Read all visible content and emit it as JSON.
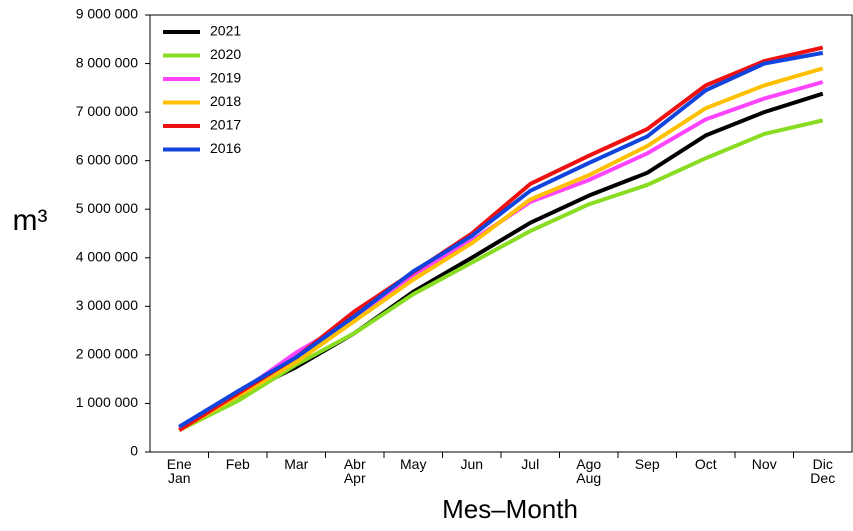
{
  "chart_data": {
    "type": "line",
    "y_label": "m³",
    "x_label": "Mes–Month",
    "categories": [
      [
        "Ene",
        "Jan"
      ],
      [
        "Feb"
      ],
      [
        "Mar"
      ],
      [
        "Abr",
        "Apr"
      ],
      [
        "May"
      ],
      [
        "Jun"
      ],
      [
        "Jul"
      ],
      [
        "Ago",
        "Aug"
      ],
      [
        "Sep"
      ],
      [
        "Oct"
      ],
      [
        "Nov"
      ],
      [
        "Dic",
        "Dec"
      ]
    ],
    "ylim": [
      0,
      9000000
    ],
    "yticks": [
      0,
      {
        "value": 1000000,
        "label": "1 000 000"
      },
      {
        "value": 2000000,
        "label": "2 000 000"
      },
      {
        "value": 3000000,
        "label": "3 000 000"
      },
      {
        "value": 4000000,
        "label": "4 000 000"
      },
      {
        "value": 5000000,
        "label": "5 000 000"
      },
      {
        "value": 6000000,
        "label": "6 000 000"
      },
      {
        "value": 7000000,
        "label": "7 000 000"
      },
      {
        "value": 8000000,
        "label": "8 000 000"
      },
      {
        "value": 9000000,
        "label": "9 000 000"
      }
    ],
    "legend": "top-left",
    "series": [
      {
        "name": "2021",
        "color": "#000000",
        "values": [
          500000,
          1150000,
          1750000,
          2450000,
          3300000,
          4000000,
          4720000,
          5280000,
          5750000,
          6520000,
          7000000,
          7380000
        ]
      },
      {
        "name": "2020",
        "color": "#88dd22",
        "values": [
          450000,
          1050000,
          1800000,
          2450000,
          3250000,
          3900000,
          4550000,
          5100000,
          5500000,
          6050000,
          6550000,
          6830000
        ]
      },
      {
        "name": "2019",
        "color": "#ff44ff",
        "values": [
          500000,
          1200000,
          2050000,
          2750000,
          3650000,
          4350000,
          5150000,
          5600000,
          6150000,
          6850000,
          7280000,
          7620000
        ]
      },
      {
        "name": "2018",
        "color": "#ffc000",
        "values": [
          450000,
          1150000,
          1850000,
          2700000,
          3550000,
          4300000,
          5200000,
          5700000,
          6300000,
          7080000,
          7550000,
          7900000
        ]
      },
      {
        "name": "2017",
        "color": "#ee1111",
        "values": [
          450000,
          1200000,
          1950000,
          2900000,
          3700000,
          4500000,
          5520000,
          6100000,
          6650000,
          7550000,
          8050000,
          8330000
        ]
      },
      {
        "name": "2016",
        "color": "#1144dd",
        "values": [
          520000,
          1250000,
          1950000,
          2800000,
          3720000,
          4450000,
          5380000,
          5950000,
          6500000,
          7450000,
          8000000,
          8220000
        ]
      }
    ]
  }
}
